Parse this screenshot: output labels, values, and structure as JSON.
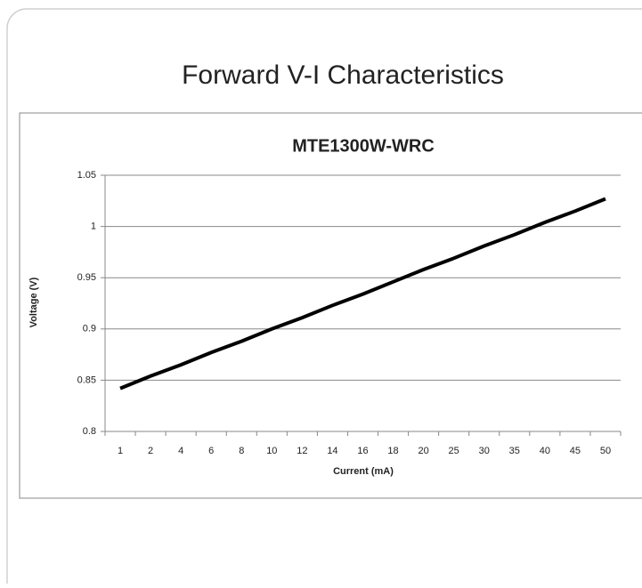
{
  "header": {
    "title": "Forward V-I Characteristics"
  },
  "chart_data": {
    "type": "line",
    "title": "MTE1300W-WRC",
    "x_label": "Current (mA)",
    "y_label": "Voltage (V)",
    "categories": [
      "1",
      "2",
      "4",
      "6",
      "8",
      "10",
      "12",
      "14",
      "16",
      "18",
      "20",
      "25",
      "30",
      "35",
      "40",
      "45",
      "50"
    ],
    "series": [
      {
        "name": "MTE1300W-WRC",
        "color": "#000000",
        "values": [
          0.842,
          0.854,
          0.865,
          0.877,
          0.888,
          0.9,
          0.911,
          0.923,
          0.934,
          0.946,
          0.958,
          0.969,
          0.981,
          0.992,
          1.004,
          1.015,
          1.027
        ]
      }
    ],
    "ylim": [
      0.8,
      1.05
    ],
    "yticks": [
      0.8,
      0.85,
      0.9,
      0.95,
      1,
      1.05
    ],
    "grid": true
  }
}
